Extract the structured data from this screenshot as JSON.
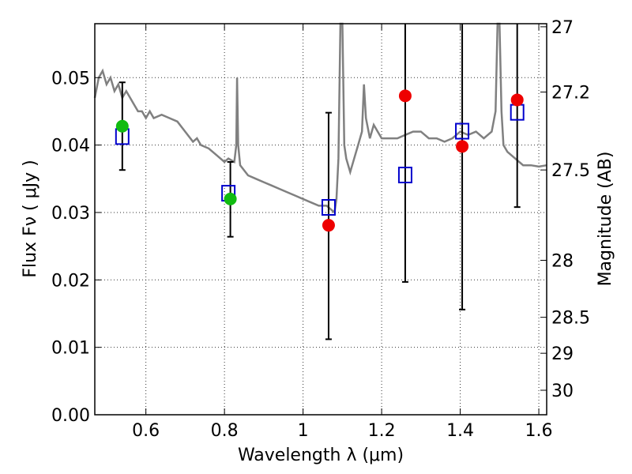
{
  "chart_data": {
    "type": "scatter",
    "xlabel": "Wavelength  λ (μm)",
    "ylabel_left": "Flux  Fν  ( μJy )",
    "ylabel_right": "Magnitude (AB)",
    "xlim": [
      0.47,
      1.62
    ],
    "ylim": [
      0.0,
      0.058
    ],
    "grid": true,
    "x_ticks": [
      0.6,
      0.8,
      1.0,
      1.2,
      1.4,
      1.6
    ],
    "x_tick_labels": [
      "0.6",
      "0.8",
      "1",
      "1.2",
      "1.4",
      "1.6"
    ],
    "y_ticks": [
      0.0,
      0.01,
      0.02,
      0.03,
      0.04,
      0.05
    ],
    "y_tick_labels": [
      "0.00",
      "0.01",
      "0.02",
      "0.03",
      "0.04",
      "0.05"
    ],
    "right_axis": {
      "scale": "ab_magnitude",
      "ticks": [
        27,
        27.2,
        27.5,
        28,
        28.5,
        29,
        30
      ],
      "tick_labels": [
        "27",
        "27.2",
        "27.5",
        "28",
        "28.5",
        "29",
        "30"
      ]
    },
    "series": [
      {
        "kind": "sed_line",
        "color": "#808080",
        "points": [
          [
            0.47,
            0.047
          ],
          [
            0.48,
            0.05
          ],
          [
            0.49,
            0.051
          ],
          [
            0.5,
            0.049
          ],
          [
            0.51,
            0.05
          ],
          [
            0.52,
            0.048
          ],
          [
            0.53,
            0.049
          ],
          [
            0.54,
            0.047
          ],
          [
            0.55,
            0.048
          ],
          [
            0.56,
            0.047
          ],
          [
            0.57,
            0.046
          ],
          [
            0.58,
            0.045
          ],
          [
            0.59,
            0.045
          ],
          [
            0.6,
            0.044
          ],
          [
            0.61,
            0.045
          ],
          [
            0.62,
            0.044
          ],
          [
            0.64,
            0.0445
          ],
          [
            0.66,
            0.044
          ],
          [
            0.68,
            0.0435
          ],
          [
            0.7,
            0.042
          ],
          [
            0.72,
            0.0405
          ],
          [
            0.73,
            0.041
          ],
          [
            0.74,
            0.04
          ],
          [
            0.76,
            0.0395
          ],
          [
            0.78,
            0.0385
          ],
          [
            0.8,
            0.0375
          ],
          [
            0.81,
            0.038
          ],
          [
            0.825,
            0.0375
          ],
          [
            0.83,
            0.04
          ],
          [
            0.832,
            0.05
          ],
          [
            0.835,
            0.04
          ],
          [
            0.84,
            0.037
          ],
          [
            0.86,
            0.0355
          ],
          [
            0.88,
            0.035
          ],
          [
            0.9,
            0.0345
          ],
          [
            0.92,
            0.034
          ],
          [
            0.94,
            0.0335
          ],
          [
            0.96,
            0.033
          ],
          [
            0.98,
            0.0325
          ],
          [
            1.0,
            0.032
          ],
          [
            1.02,
            0.0315
          ],
          [
            1.04,
            0.031
          ],
          [
            1.06,
            0.031
          ],
          [
            1.07,
            0.0305
          ],
          [
            1.08,
            0.03
          ],
          [
            1.085,
            0.032
          ],
          [
            1.09,
            0.038
          ],
          [
            1.095,
            0.058
          ],
          [
            1.1,
            0.058
          ],
          [
            1.105,
            0.04
          ],
          [
            1.11,
            0.038
          ],
          [
            1.12,
            0.036
          ],
          [
            1.13,
            0.038
          ],
          [
            1.14,
            0.04
          ],
          [
            1.15,
            0.042
          ],
          [
            1.155,
            0.049
          ],
          [
            1.16,
            0.044
          ],
          [
            1.17,
            0.041
          ],
          [
            1.18,
            0.043
          ],
          [
            1.19,
            0.042
          ],
          [
            1.2,
            0.041
          ],
          [
            1.22,
            0.041
          ],
          [
            1.24,
            0.041
          ],
          [
            1.26,
            0.0415
          ],
          [
            1.28,
            0.042
          ],
          [
            1.3,
            0.042
          ],
          [
            1.32,
            0.041
          ],
          [
            1.34,
            0.041
          ],
          [
            1.36,
            0.0405
          ],
          [
            1.38,
            0.041
          ],
          [
            1.4,
            0.042
          ],
          [
            1.42,
            0.0415
          ],
          [
            1.44,
            0.042
          ],
          [
            1.46,
            0.041
          ],
          [
            1.48,
            0.042
          ],
          [
            1.49,
            0.045
          ],
          [
            1.495,
            0.058
          ],
          [
            1.5,
            0.058
          ],
          [
            1.505,
            0.045
          ],
          [
            1.51,
            0.04
          ],
          [
            1.52,
            0.039
          ],
          [
            1.54,
            0.038
          ],
          [
            1.56,
            0.037
          ],
          [
            1.58,
            0.037
          ],
          [
            1.6,
            0.0368
          ],
          [
            1.62,
            0.037
          ]
        ]
      },
      {
        "kind": "model_squares",
        "color": "#0000cc",
        "x": [
          0.54,
          0.81,
          1.065,
          1.26,
          1.405,
          1.545
        ],
        "y": [
          0.0412,
          0.0328,
          0.0307,
          0.0355,
          0.042,
          0.0448
        ]
      },
      {
        "kind": "detections",
        "color": "#11bb11",
        "x": [
          0.54,
          0.815
        ],
        "y": [
          0.0428,
          0.032
        ]
      },
      {
        "kind": "upper_limits",
        "color": "#ee0000",
        "x": [
          1.065,
          1.26,
          1.405,
          1.545
        ],
        "y": [
          0.0281,
          0.0473,
          0.0398,
          0.0467
        ]
      },
      {
        "kind": "error_bars",
        "color": "#000000",
        "x": [
          0.54,
          0.815,
          1.065,
          1.26,
          1.405,
          1.545
        ],
        "ylow": [
          0.0363,
          0.0264,
          0.0112,
          0.0197,
          0.0156,
          0.0308
        ],
        "yhigh": [
          0.0493,
          0.0375,
          0.0448,
          0.058,
          0.058,
          0.058
        ]
      }
    ]
  }
}
